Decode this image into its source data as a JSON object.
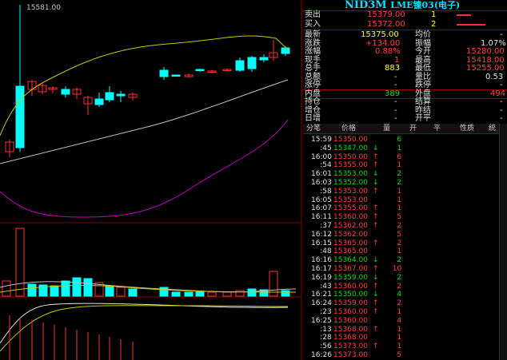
{
  "chart": {
    "peak_label": "15581.00",
    "colors": {
      "up": "#ff3030",
      "down": "#00ffff",
      "ma1": "#c8c800",
      "ma2": "#c0c0c0",
      "ma3": "#c000c0"
    }
  },
  "quote": {
    "symbol": "NID3M",
    "name": "LME镍03(电子)",
    "sell_label": "卖出",
    "sell_price": "15379.00",
    "sell_qty": "1",
    "buy_label": "买入",
    "buy_price": "15372.00",
    "buy_qty": "2",
    "stats": [
      {
        "l1": "最新",
        "v1": "15375.00",
        "c1": "yl",
        "l2": "均价",
        "v2": "-",
        "c2": "wh"
      },
      {
        "l1": "涨跌",
        "v1": "+134.00",
        "c1": "up",
        "l2": "振幅",
        "v2": "1.07%",
        "c2": "wh"
      },
      {
        "l1": "涨幅",
        "v1": "0.88%",
        "c1": "up",
        "l2": "今开",
        "v2": "15280.00",
        "c2": "up"
      },
      {
        "l1": "现手",
        "v1": "1",
        "c1": "up",
        "l2": "最高",
        "v2": "15418.00",
        "c2": "up"
      },
      {
        "l1": "总手",
        "v1": "883",
        "c1": "yl",
        "l2": "最低",
        "v2": "15255.00",
        "c2": "up"
      },
      {
        "l1": "总额",
        "v1": "-",
        "c1": "wh",
        "l2": "量比",
        "v2": "0.53",
        "c2": "wh"
      },
      {
        "l1": "涨停",
        "v1": "-",
        "c1": "wh",
        "l2": "跌停",
        "v2": "-",
        "c2": "wh"
      },
      {
        "l1": "内盘",
        "v1": "389",
        "c1": "dn",
        "l2": "外盘",
        "v2": "494",
        "c2": "up"
      },
      {
        "l1": "持仓",
        "v1": "-",
        "c1": "wh",
        "l2": "结算",
        "v2": "-",
        "c2": "wh"
      },
      {
        "l1": "增仓",
        "v1": "-",
        "c1": "wh",
        "l2": "昨结",
        "v2": "-",
        "c2": "wh"
      },
      {
        "l1": "日增",
        "v1": "-",
        "c1": "wh",
        "l2": "开平",
        "v2": "-",
        "c2": "wh"
      }
    ]
  },
  "ticks_header": {
    "time": "分笔",
    "price": "价格",
    "vol": "量",
    "open": "开",
    "close": "平",
    "nature": "性质",
    "stat": "统"
  },
  "ticks": [
    {
      "time": "15:59",
      "price": "15350.00",
      "dir": "",
      "vol": "6",
      "vc": "dn"
    },
    {
      "time": ":45",
      "price": "15347.00",
      "dir": "↓",
      "vol": "1",
      "vc": "dn"
    },
    {
      "time": "16:00",
      "price": "15350.00",
      "dir": "↑",
      "vol": "6",
      "vc": "up"
    },
    {
      "time": ":54",
      "price": "15355.00",
      "dir": "↑",
      "vol": "1",
      "vc": "up"
    },
    {
      "time": "16:01",
      "price": "15353.00",
      "dir": "↓",
      "vol": "2",
      "vc": "dn"
    },
    {
      "time": "16:03",
      "price": "15352.00",
      "dir": "↓",
      "vol": "2",
      "vc": "dn"
    },
    {
      "time": ":58",
      "price": "15353.00",
      "dir": "↑",
      "vol": "1",
      "vc": "up"
    },
    {
      "time": "16:05",
      "price": "15353.00",
      "dir": "",
      "vol": "1",
      "vc": "up"
    },
    {
      "time": "16:07",
      "price": "15355.00",
      "dir": "↑",
      "vol": "1",
      "vc": "up"
    },
    {
      "time": "16:11",
      "price": "15360.00",
      "dir": "↑",
      "vol": "5",
      "vc": "up"
    },
    {
      "time": ":37",
      "price": "15362.00",
      "dir": "↑",
      "vol": "2",
      "vc": "up"
    },
    {
      "time": "16:12",
      "price": "15362.00",
      "dir": "",
      "vol": "5",
      "vc": "up"
    },
    {
      "time": "16:15",
      "price": "15365.00",
      "dir": "↑",
      "vol": "2",
      "vc": "up"
    },
    {
      "time": ":48",
      "price": "15365.00",
      "dir": "",
      "vol": "1",
      "vc": "up"
    },
    {
      "time": "16:16",
      "price": "15364.00",
      "dir": "↓",
      "vol": "2",
      "vc": "dn"
    },
    {
      "time": "16:17",
      "price": "15367.00",
      "dir": "↑",
      "vol": "10",
      "vc": "up"
    },
    {
      "time": "16:19",
      "price": "15359.00",
      "dir": "↓",
      "vol": "2",
      "vc": "dn"
    },
    {
      "time": ":43",
      "price": "15360.00",
      "dir": "↑",
      "vol": "2",
      "vc": "up"
    },
    {
      "time": "16:21",
      "price": "15350.00",
      "dir": "↓",
      "vol": "4",
      "vc": "dn"
    },
    {
      "time": "16:24",
      "price": "15359.00",
      "dir": "↑",
      "vol": "2",
      "vc": "up"
    },
    {
      "time": ":23",
      "price": "15360.00",
      "dir": "↑",
      "vol": "1",
      "vc": "up"
    },
    {
      "time": "16:25",
      "price": "15360.00",
      "dir": "",
      "vol": "4",
      "vc": "up"
    },
    {
      "time": ":13",
      "price": "15368.00",
      "dir": "↑",
      "vol": "1",
      "vc": "up"
    },
    {
      "time": ":28",
      "price": "15368.00",
      "dir": "",
      "vol": "1",
      "vc": "up"
    },
    {
      "time": ":56",
      "price": "15373.00",
      "dir": "↑",
      "vol": "1",
      "vc": "up"
    },
    {
      "time": "16:26",
      "price": "15373.00",
      "dir": "",
      "vol": "5",
      "vc": "up"
    }
  ]
}
